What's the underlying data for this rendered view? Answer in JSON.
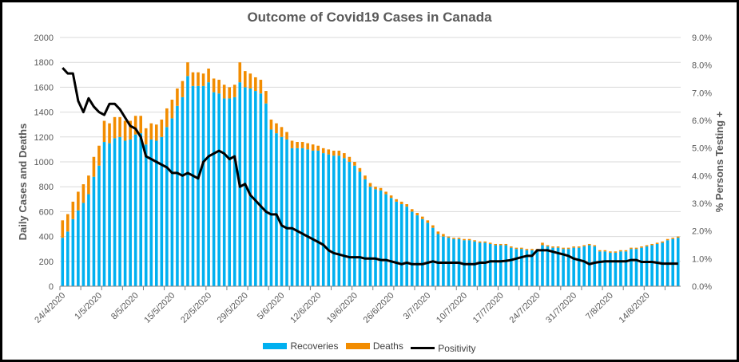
{
  "chart_data": {
    "type": "bar",
    "title": "Outcome of Covid19 Cases in Canada",
    "xlabel": "",
    "ylabel": "Daily Cases and Deaths",
    "y2label": "% Persons Testing +",
    "ylim": [
      0,
      2000
    ],
    "y2lim": [
      0,
      0.09
    ],
    "yticks": [
      "0",
      "200",
      "400",
      "600",
      "800",
      "1000",
      "1200",
      "1400",
      "1600",
      "1800",
      "2000"
    ],
    "y2ticks": [
      "0.0%",
      "1.0%",
      "2.0%",
      "3.0%",
      "4.0%",
      "5.0%",
      "6.0%",
      "7.0%",
      "8.0%",
      "9.0%"
    ],
    "grid": true,
    "legend_position": "bottom",
    "xtick_labels": [
      "24/4/2020",
      "1/5/2020",
      "8/5/2020",
      "15/5/2020",
      "22/5/2020",
      "29/5/2020",
      "5/6/2020",
      "12/6/2020",
      "19/6/2020",
      "26/6/2020",
      "3/7/2020",
      "10/7/2020",
      "17/7/2020",
      "24/7/2020",
      "31/7/2020",
      "7/8/2020",
      "14/8/2020"
    ],
    "xtick_label_every": 7,
    "stacked": true,
    "series": [
      {
        "name": "Recoveries",
        "type": "bar",
        "color": "#00B0F0",
        "values": [
          390,
          440,
          540,
          610,
          670,
          740,
          880,
          970,
          1160,
          1150,
          1190,
          1200,
          1170,
          1180,
          1220,
          1230,
          1140,
          1180,
          1170,
          1200,
          1280,
          1350,
          1450,
          1520,
          1690,
          1610,
          1610,
          1610,
          1640,
          1560,
          1550,
          1510,
          1510,
          1520,
          1640,
          1600,
          1590,
          1570,
          1550,
          1470,
          1260,
          1230,
          1200,
          1180,
          1110,
          1110,
          1110,
          1100,
          1090,
          1090,
          1070,
          1060,
          1050,
          1050,
          1030,
          1000,
          970,
          920,
          860,
          800,
          780,
          770,
          740,
          710,
          680,
          660,
          640,
          600,
          570,
          540,
          510,
          470,
          420,
          400,
          390,
          380,
          380,
          370,
          370,
          360,
          350,
          350,
          340,
          330,
          330,
          330,
          310,
          300,
          300,
          290,
          290,
          290,
          330,
          320,
          310,
          310,
          300,
          300,
          310,
          310,
          320,
          330,
          320,
          280,
          280,
          270,
          270,
          280,
          280,
          300,
          300,
          310,
          320,
          330,
          340,
          350,
          370,
          380,
          390
        ],
        "note_values_in": "daily count"
      },
      {
        "name": "Deaths",
        "type": "bar",
        "color": "#F28C00",
        "values": [
          140,
          140,
          140,
          150,
          150,
          150,
          160,
          160,
          170,
          160,
          170,
          160,
          160,
          150,
          150,
          140,
          130,
          130,
          130,
          140,
          150,
          150,
          140,
          130,
          110,
          110,
          110,
          100,
          110,
          110,
          110,
          110,
          90,
          100,
          160,
          130,
          120,
          110,
          110,
          100,
          80,
          80,
          80,
          60,
          60,
          50,
          50,
          50,
          50,
          40,
          40,
          40,
          40,
          40,
          40,
          40,
          30,
          30,
          30,
          30,
          20,
          20,
          20,
          20,
          20,
          20,
          20,
          20,
          20,
          20,
          20,
          20,
          20,
          20,
          10,
          10,
          10,
          10,
          10,
          10,
          10,
          10,
          10,
          10,
          10,
          10,
          10,
          10,
          10,
          10,
          10,
          10,
          20,
          10,
          10,
          10,
          10,
          10,
          10,
          10,
          10,
          10,
          10,
          10,
          10,
          10,
          10,
          10,
          10,
          10,
          10,
          10,
          10,
          10,
          10,
          10,
          10,
          10,
          10
        ],
        "note_values_in": "daily count"
      },
      {
        "name": "Positivity",
        "type": "line",
        "color": "#000000",
        "axis": "right",
        "values": [
          0.079,
          0.077,
          0.077,
          0.067,
          0.063,
          0.068,
          0.065,
          0.063,
          0.062,
          0.066,
          0.066,
          0.064,
          0.061,
          0.058,
          0.057,
          0.054,
          0.047,
          0.046,
          0.045,
          0.044,
          0.043,
          0.041,
          0.041,
          0.04,
          0.041,
          0.04,
          0.039,
          0.045,
          0.047,
          0.048,
          0.049,
          0.048,
          0.046,
          0.047,
          0.036,
          0.037,
          0.033,
          0.031,
          0.029,
          0.027,
          0.026,
          0.026,
          0.022,
          0.021,
          0.021,
          0.02,
          0.019,
          0.018,
          0.017,
          0.016,
          0.015,
          0.013,
          0.012,
          0.0115,
          0.011,
          0.0105,
          0.0105,
          0.0105,
          0.01,
          0.01,
          0.01,
          0.0095,
          0.0095,
          0.009,
          0.0085,
          0.008,
          0.0085,
          0.008,
          0.008,
          0.008,
          0.0085,
          0.009,
          0.0085,
          0.0085,
          0.0085,
          0.0085,
          0.0085,
          0.008,
          0.008,
          0.008,
          0.0085,
          0.0085,
          0.009,
          0.009,
          0.009,
          0.0092,
          0.0095,
          0.01,
          0.0105,
          0.011,
          0.011,
          0.013,
          0.013,
          0.013,
          0.0125,
          0.012,
          0.0115,
          0.011,
          0.01,
          0.0095,
          0.009,
          0.008,
          0.0085,
          0.0088,
          0.009,
          0.009,
          0.009,
          0.009,
          0.009,
          0.0095,
          0.0095,
          0.0088,
          0.0088,
          0.0088,
          0.0085,
          0.0082,
          0.0082,
          0.0082,
          0.0082
        ]
      }
    ]
  },
  "legend": {
    "items": [
      {
        "label": "Recoveries",
        "color": "#00B0F0"
      },
      {
        "label": "Deaths",
        "color": "#F28C00"
      },
      {
        "label": "Positivity",
        "color": "#000000"
      }
    ]
  }
}
